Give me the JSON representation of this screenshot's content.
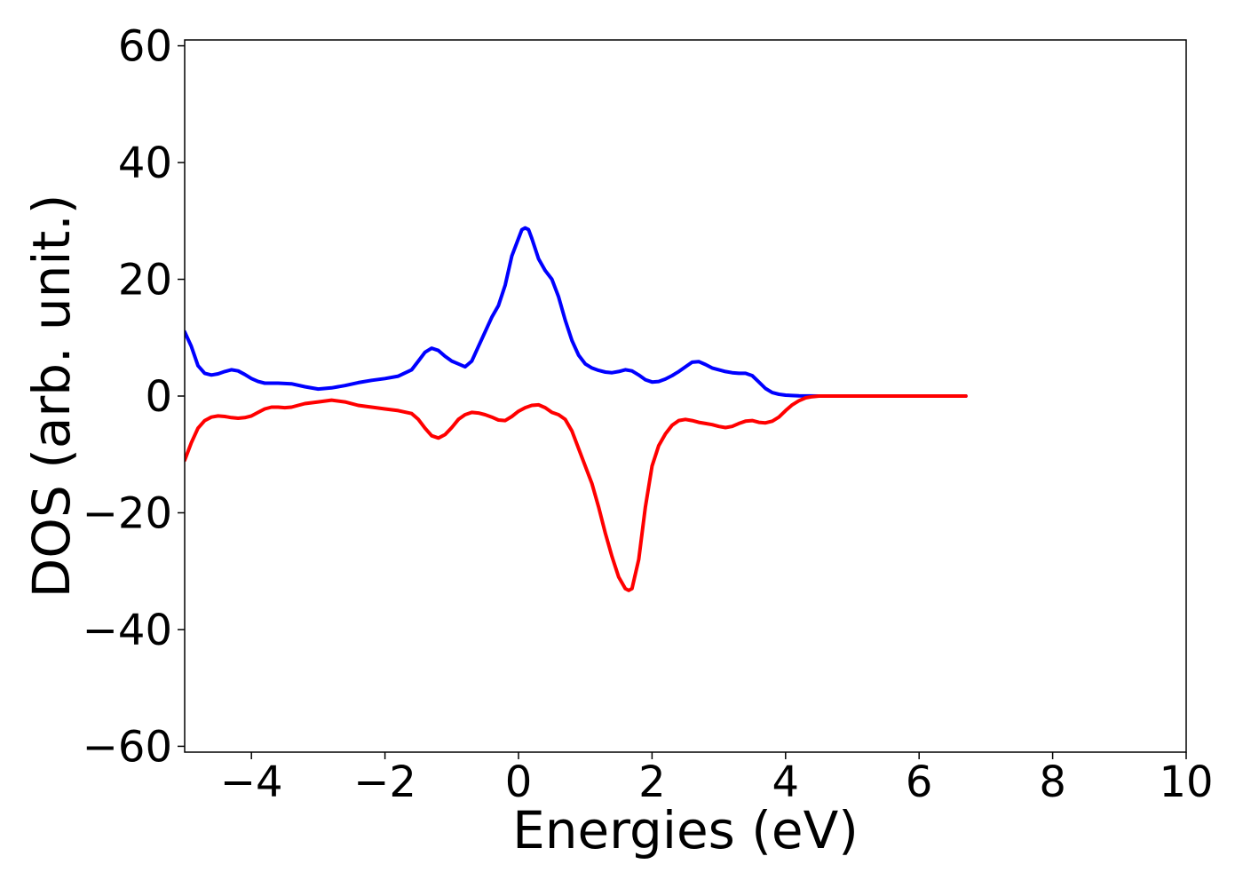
{
  "chart_data": {
    "type": "line",
    "title": "",
    "xlabel": "Energies (eV)",
    "ylabel": "DOS (arb. unit.)",
    "xlim": [
      -5,
      10
    ],
    "ylim": [
      -61,
      61
    ],
    "xticks": [
      -4,
      -2,
      0,
      2,
      4,
      6,
      8,
      10
    ],
    "xtick_labels": [
      "−4",
      "−2",
      "0",
      "2",
      "4",
      "6",
      "8",
      "10"
    ],
    "yticks": [
      60,
      40,
      20,
      0,
      -20,
      -40,
      -60
    ],
    "ytick_labels": [
      "60",
      "40",
      "20",
      "0",
      "−20",
      "−40",
      "−60"
    ],
    "grid": false,
    "legend": "none",
    "series": [
      {
        "color": "#0000ff",
        "points": [
          [
            -5.0,
            11.0
          ],
          [
            -4.9,
            8.5
          ],
          [
            -4.8,
            5.2
          ],
          [
            -4.7,
            3.9
          ],
          [
            -4.6,
            3.6
          ],
          [
            -4.5,
            3.8
          ],
          [
            -4.4,
            4.2
          ],
          [
            -4.3,
            4.5
          ],
          [
            -4.2,
            4.3
          ],
          [
            -4.1,
            3.7
          ],
          [
            -4.0,
            3.0
          ],
          [
            -3.9,
            2.5
          ],
          [
            -3.8,
            2.2
          ],
          [
            -3.6,
            2.2
          ],
          [
            -3.4,
            2.1
          ],
          [
            -3.2,
            1.6
          ],
          [
            -3.0,
            1.2
          ],
          [
            -2.8,
            1.4
          ],
          [
            -2.6,
            1.8
          ],
          [
            -2.4,
            2.3
          ],
          [
            -2.2,
            2.7
          ],
          [
            -2.0,
            3.0
          ],
          [
            -1.8,
            3.4
          ],
          [
            -1.6,
            4.5
          ],
          [
            -1.5,
            6.0
          ],
          [
            -1.4,
            7.5
          ],
          [
            -1.3,
            8.2
          ],
          [
            -1.2,
            7.8
          ],
          [
            -1.1,
            6.8
          ],
          [
            -1.0,
            6.0
          ],
          [
            -0.9,
            5.5
          ],
          [
            -0.8,
            5.0
          ],
          [
            -0.7,
            6.0
          ],
          [
            -0.6,
            8.5
          ],
          [
            -0.5,
            11.0
          ],
          [
            -0.4,
            13.5
          ],
          [
            -0.3,
            15.5
          ],
          [
            -0.2,
            19.0
          ],
          [
            -0.1,
            24.0
          ],
          [
            0.0,
            27.0
          ],
          [
            0.05,
            28.5
          ],
          [
            0.1,
            28.8
          ],
          [
            0.15,
            28.5
          ],
          [
            0.2,
            27.0
          ],
          [
            0.3,
            23.5
          ],
          [
            0.4,
            21.5
          ],
          [
            0.5,
            20.0
          ],
          [
            0.6,
            17.0
          ],
          [
            0.7,
            13.0
          ],
          [
            0.8,
            9.5
          ],
          [
            0.9,
            7.0
          ],
          [
            1.0,
            5.5
          ],
          [
            1.1,
            4.8
          ],
          [
            1.2,
            4.4
          ],
          [
            1.3,
            4.1
          ],
          [
            1.4,
            4.0
          ],
          [
            1.5,
            4.2
          ],
          [
            1.6,
            4.5
          ],
          [
            1.7,
            4.3
          ],
          [
            1.8,
            3.6
          ],
          [
            1.9,
            2.8
          ],
          [
            2.0,
            2.4
          ],
          [
            2.1,
            2.5
          ],
          [
            2.2,
            2.9
          ],
          [
            2.3,
            3.5
          ],
          [
            2.4,
            4.2
          ],
          [
            2.5,
            5.0
          ],
          [
            2.6,
            5.8
          ],
          [
            2.7,
            5.9
          ],
          [
            2.8,
            5.4
          ],
          [
            2.9,
            4.8
          ],
          [
            3.0,
            4.5
          ],
          [
            3.1,
            4.2
          ],
          [
            3.2,
            4.0
          ],
          [
            3.3,
            3.9
          ],
          [
            3.4,
            3.9
          ],
          [
            3.5,
            3.5
          ],
          [
            3.6,
            2.4
          ],
          [
            3.7,
            1.3
          ],
          [
            3.8,
            0.6
          ],
          [
            3.9,
            0.3
          ],
          [
            4.0,
            0.15
          ],
          [
            4.2,
            0.05
          ],
          [
            4.5,
            0.0
          ],
          [
            5.0,
            0.0
          ],
          [
            6.0,
            0.0
          ],
          [
            6.7,
            0.0
          ]
        ]
      },
      {
        "color": "#ff0000",
        "points": [
          [
            -5.0,
            -11.0
          ],
          [
            -4.9,
            -8.0
          ],
          [
            -4.8,
            -5.5
          ],
          [
            -4.7,
            -4.2
          ],
          [
            -4.6,
            -3.6
          ],
          [
            -4.5,
            -3.4
          ],
          [
            -4.4,
            -3.5
          ],
          [
            -4.3,
            -3.7
          ],
          [
            -4.2,
            -3.8
          ],
          [
            -4.1,
            -3.7
          ],
          [
            -4.0,
            -3.4
          ],
          [
            -3.9,
            -2.8
          ],
          [
            -3.8,
            -2.2
          ],
          [
            -3.7,
            -1.9
          ],
          [
            -3.6,
            -1.9
          ],
          [
            -3.5,
            -2.0
          ],
          [
            -3.4,
            -1.9
          ],
          [
            -3.3,
            -1.6
          ],
          [
            -3.2,
            -1.3
          ],
          [
            -3.0,
            -1.0
          ],
          [
            -2.8,
            -0.7
          ],
          [
            -2.6,
            -1.0
          ],
          [
            -2.4,
            -1.6
          ],
          [
            -2.2,
            -1.9
          ],
          [
            -2.0,
            -2.2
          ],
          [
            -1.8,
            -2.5
          ],
          [
            -1.6,
            -3.0
          ],
          [
            -1.5,
            -4.0
          ],
          [
            -1.4,
            -5.5
          ],
          [
            -1.3,
            -6.8
          ],
          [
            -1.2,
            -7.2
          ],
          [
            -1.1,
            -6.6
          ],
          [
            -1.0,
            -5.4
          ],
          [
            -0.9,
            -4.0
          ],
          [
            -0.8,
            -3.2
          ],
          [
            -0.7,
            -2.8
          ],
          [
            -0.6,
            -2.9
          ],
          [
            -0.5,
            -3.2
          ],
          [
            -0.4,
            -3.6
          ],
          [
            -0.3,
            -4.1
          ],
          [
            -0.2,
            -4.2
          ],
          [
            -0.1,
            -3.5
          ],
          [
            0.0,
            -2.6
          ],
          [
            0.1,
            -2.0
          ],
          [
            0.2,
            -1.6
          ],
          [
            0.3,
            -1.5
          ],
          [
            0.4,
            -2.0
          ],
          [
            0.5,
            -2.8
          ],
          [
            0.6,
            -3.2
          ],
          [
            0.7,
            -4.0
          ],
          [
            0.8,
            -6.0
          ],
          [
            0.9,
            -9.0
          ],
          [
            1.0,
            -12.0
          ],
          [
            1.1,
            -15.0
          ],
          [
            1.2,
            -19.0
          ],
          [
            1.3,
            -23.5
          ],
          [
            1.4,
            -27.5
          ],
          [
            1.5,
            -31.0
          ],
          [
            1.6,
            -33.0
          ],
          [
            1.65,
            -33.3
          ],
          [
            1.7,
            -33.0
          ],
          [
            1.8,
            -28.0
          ],
          [
            1.9,
            -19.0
          ],
          [
            2.0,
            -12.0
          ],
          [
            2.1,
            -8.5
          ],
          [
            2.2,
            -6.5
          ],
          [
            2.3,
            -5.0
          ],
          [
            2.4,
            -4.2
          ],
          [
            2.5,
            -4.0
          ],
          [
            2.6,
            -4.2
          ],
          [
            2.7,
            -4.5
          ],
          [
            2.8,
            -4.7
          ],
          [
            2.9,
            -4.9
          ],
          [
            3.0,
            -5.2
          ],
          [
            3.1,
            -5.4
          ],
          [
            3.2,
            -5.2
          ],
          [
            3.3,
            -4.7
          ],
          [
            3.4,
            -4.3
          ],
          [
            3.5,
            -4.2
          ],
          [
            3.6,
            -4.5
          ],
          [
            3.7,
            -4.6
          ],
          [
            3.8,
            -4.3
          ],
          [
            3.9,
            -3.6
          ],
          [
            4.0,
            -2.5
          ],
          [
            4.1,
            -1.5
          ],
          [
            4.2,
            -0.8
          ],
          [
            4.3,
            -0.3
          ],
          [
            4.4,
            -0.1
          ],
          [
            4.5,
            0.0
          ],
          [
            5.0,
            0.0
          ],
          [
            6.0,
            0.0
          ],
          [
            6.7,
            0.0
          ]
        ]
      }
    ]
  }
}
